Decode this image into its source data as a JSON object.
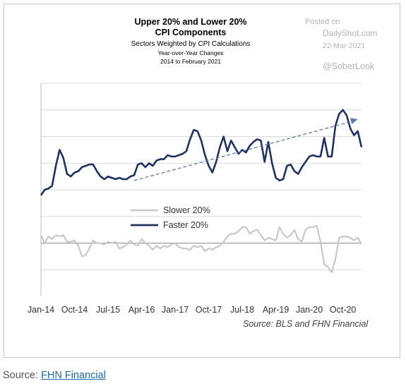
{
  "watermark": {
    "posted": "Posted on",
    "site": "DailyShot.com",
    "date": "22-Mar-2021",
    "handle": "@SoberLook"
  },
  "footer": {
    "label": "Source:",
    "link": "FHN Financial"
  },
  "chart_data": {
    "type": "line",
    "title": "Upper 20% and Lower 20%",
    "title_line2": "CPI Components",
    "subtitle": "Sectors Weighted by CPI Calculations",
    "subtitle2": "Year-over-Year Changes",
    "subtitle3": "2014 to February 2021",
    "source_note": "Source:  BLS and FHN Financial",
    "x_tick_labels": [
      "Jan-14",
      "Oct-14",
      "Jul-15",
      "Apr-16",
      "Jan-17",
      "Oct-17",
      "Jul-18",
      "Apr-19",
      "Jan-20",
      "Oct-20"
    ],
    "x_range": [
      0,
      86
    ],
    "y_range": [
      -2,
      6
    ],
    "y_ticks": [
      -2,
      -1,
      0,
      1,
      2,
      3,
      4,
      5,
      6
    ],
    "y_labels_shown": false,
    "grid": "horizontal",
    "legend_placement": "center-left",
    "zero_line": 0,
    "series": [
      {
        "name": "Slower 20%",
        "color": "#c8c8c8",
        "values": [
          0.3,
          0.0,
          0.25,
          0.15,
          0.3,
          0.25,
          0.3,
          0.05,
          0.05,
          0.1,
          -0.1,
          -0.5,
          -0.45,
          -0.2,
          0.1,
          0.0,
          0.0,
          -0.05,
          0.05,
          0.0,
          0.05,
          -0.2,
          -0.15,
          -0.05,
          0.1,
          -0.05,
          -0.1,
          0.15,
          0.0,
          -0.1,
          -0.25,
          -0.1,
          -0.2,
          -0.1,
          -0.15,
          -0.05,
          0.0,
          -0.15,
          -0.2,
          -0.2,
          -0.25,
          -0.1,
          -0.15,
          -0.1,
          -0.3,
          -0.2,
          -0.25,
          -0.15,
          -0.1,
          0.05,
          0.25,
          0.35,
          0.35,
          0.45,
          0.6,
          0.6,
          0.35,
          0.45,
          0.5,
          0.3,
          0.1,
          0.2,
          0.15,
          0.1,
          0.6,
          0.35,
          0.2,
          0.3,
          0.5,
          0.15,
          0.05,
          0.5,
          0.6,
          0.6,
          0.65,
          0.05,
          -0.8,
          -0.9,
          -1.1,
          -0.6,
          0.2,
          0.25,
          0.25,
          0.2,
          0.1,
          0.2,
          -0.05
        ]
      },
      {
        "name": "Faster 20%",
        "color": "#1f3260",
        "values": [
          1.8,
          2.0,
          2.05,
          2.15,
          2.9,
          3.5,
          3.2,
          2.6,
          2.5,
          2.65,
          2.7,
          2.85,
          2.9,
          2.95,
          2.95,
          2.7,
          2.5,
          2.4,
          2.5,
          2.45,
          2.4,
          2.45,
          2.4,
          2.4,
          2.5,
          2.55,
          2.95,
          3.0,
          2.85,
          3.0,
          2.9,
          3.1,
          3.15,
          3.15,
          3.3,
          3.25,
          3.25,
          3.3,
          3.35,
          3.45,
          3.9,
          4.25,
          4.2,
          3.85,
          3.3,
          2.9,
          2.65,
          3.05,
          3.6,
          4.0,
          3.45,
          3.85,
          3.6,
          3.35,
          3.5,
          3.4,
          3.65,
          3.8,
          3.9,
          3.85,
          3.05,
          3.8,
          3.0,
          2.45,
          2.35,
          2.4,
          2.9,
          2.95,
          2.7,
          2.6,
          2.85,
          3.05,
          3.25,
          3.3,
          3.25,
          3.25,
          3.95,
          3.25,
          3.25,
          4.4,
          4.85,
          5.0,
          4.8,
          4.3,
          4.05,
          4.2,
          3.6
        ]
      }
    ],
    "trendline": {
      "style": "dashed",
      "color": "#6677aa",
      "from": [
        25,
        2.35
      ],
      "to": [
        85,
        4.65
      ],
      "arrow": true
    }
  }
}
